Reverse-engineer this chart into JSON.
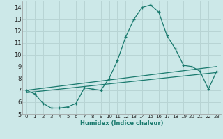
{
  "xlabel": "Humidex (Indice chaleur)",
  "background_color": "#cce8e8",
  "grid_color": "#b8d4d4",
  "line_color": "#1a7a6e",
  "xlim": [
    -0.5,
    23.5
  ],
  "ylim": [
    5,
    14.5
  ],
  "yticks": [
    5,
    6,
    7,
    8,
    9,
    10,
    11,
    12,
    13,
    14
  ],
  "xticks": [
    0,
    1,
    2,
    3,
    4,
    5,
    6,
    7,
    8,
    9,
    10,
    11,
    12,
    13,
    14,
    15,
    16,
    17,
    18,
    19,
    20,
    21,
    22,
    23
  ],
  "series1_x": [
    0,
    1,
    2,
    3,
    4,
    5,
    6,
    7,
    8,
    9,
    10,
    11,
    12,
    13,
    14,
    15,
    16,
    17,
    18,
    19,
    20,
    21,
    22,
    23
  ],
  "series1_y": [
    7.0,
    6.7,
    5.9,
    5.5,
    5.5,
    5.6,
    5.9,
    7.2,
    7.1,
    7.0,
    8.0,
    9.5,
    11.5,
    13.0,
    14.0,
    14.2,
    13.6,
    11.6,
    10.5,
    9.1,
    9.0,
    8.6,
    7.1,
    8.6
  ],
  "series2_x": [
    0,
    23
  ],
  "series2_y": [
    7.0,
    9.0
  ],
  "series3_x": [
    0,
    23
  ],
  "series3_y": [
    6.8,
    8.5
  ]
}
